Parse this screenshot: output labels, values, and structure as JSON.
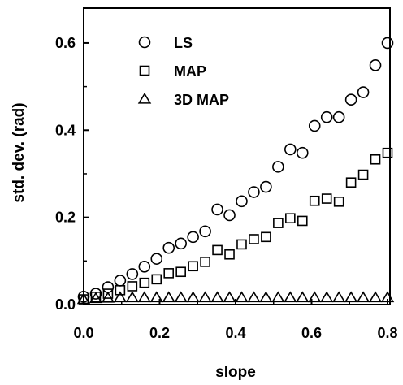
{
  "chart_data": {
    "type": "scatter",
    "xlabel": "slope",
    "ylabel": "std. dev. (rad)",
    "xlim": [
      0,
      0.8
    ],
    "ylim": [
      0,
      0.68
    ],
    "xticks": [
      0.0,
      0.2,
      0.4,
      0.6,
      0.8
    ],
    "xtick_labels": [
      "0.0",
      "0.2",
      "0.4",
      "0.6",
      "0.8"
    ],
    "yticks": [
      0.0,
      0.2,
      0.4,
      0.6
    ],
    "ytick_labels": [
      "0.0",
      "0.2",
      "0.4",
      "0.6"
    ],
    "grid": false,
    "legend_position": "top-left",
    "series": [
      {
        "name": "LS",
        "marker": "circle",
        "x": [
          0.0,
          0.032,
          0.064,
          0.096,
          0.128,
          0.16,
          0.192,
          0.224,
          0.256,
          0.288,
          0.32,
          0.352,
          0.384,
          0.416,
          0.448,
          0.48,
          0.512,
          0.544,
          0.576,
          0.608,
          0.64,
          0.672,
          0.704,
          0.736,
          0.768,
          0.8
        ],
        "y": [
          0.018,
          0.025,
          0.04,
          0.055,
          0.07,
          0.087,
          0.105,
          0.13,
          0.14,
          0.155,
          0.168,
          0.218,
          0.205,
          0.237,
          0.258,
          0.27,
          0.316,
          0.356,
          0.348,
          0.41,
          0.43,
          0.43,
          0.47,
          0.487,
          0.549,
          0.6
        ]
      },
      {
        "name": "MAP",
        "marker": "square",
        "x": [
          0.0,
          0.032,
          0.064,
          0.096,
          0.128,
          0.16,
          0.192,
          0.224,
          0.256,
          0.288,
          0.32,
          0.352,
          0.384,
          0.416,
          0.448,
          0.48,
          0.512,
          0.544,
          0.576,
          0.608,
          0.64,
          0.672,
          0.704,
          0.736,
          0.768,
          0.8
        ],
        "y": [
          0.012,
          0.018,
          0.025,
          0.033,
          0.042,
          0.05,
          0.058,
          0.072,
          0.075,
          0.088,
          0.098,
          0.125,
          0.115,
          0.138,
          0.15,
          0.155,
          0.187,
          0.198,
          0.192,
          0.238,
          0.243,
          0.236,
          0.28,
          0.298,
          0.333,
          0.348
        ]
      },
      {
        "name": "3D MAP",
        "marker": "triangle",
        "x": [
          0.0,
          0.032,
          0.064,
          0.096,
          0.128,
          0.16,
          0.192,
          0.224,
          0.256,
          0.288,
          0.32,
          0.352,
          0.384,
          0.416,
          0.448,
          0.48,
          0.512,
          0.544,
          0.576,
          0.608,
          0.64,
          0.672,
          0.704,
          0.736,
          0.768,
          0.8
        ],
        "y": [
          0.012,
          0.014,
          0.015,
          0.016,
          0.016,
          0.016,
          0.016,
          0.016,
          0.016,
          0.016,
          0.016,
          0.016,
          0.016,
          0.016,
          0.016,
          0.016,
          0.016,
          0.016,
          0.016,
          0.016,
          0.016,
          0.016,
          0.016,
          0.016,
          0.016,
          0.016
        ]
      }
    ]
  }
}
